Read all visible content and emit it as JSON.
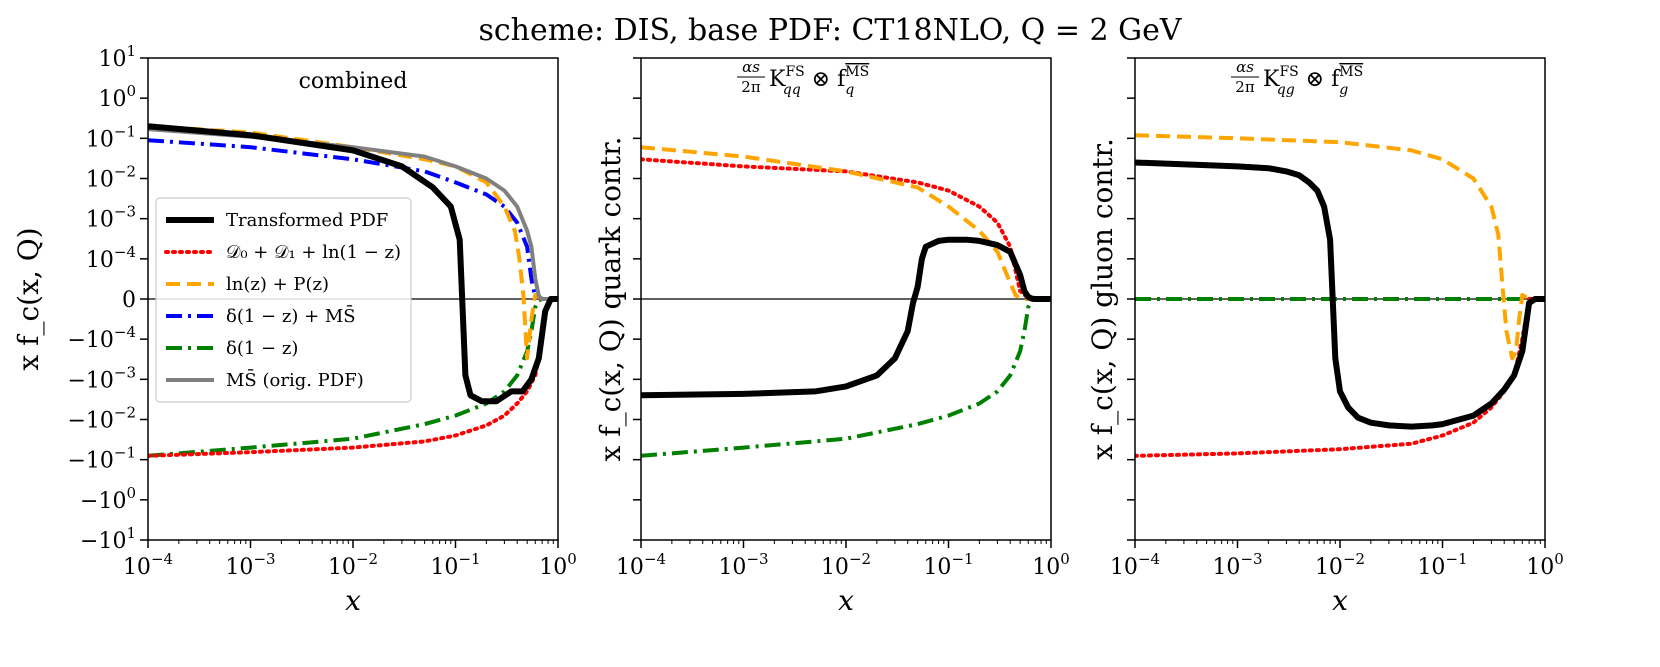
{
  "figure": {
    "suptitle": "scheme: DIS, base PDF: CT18NLO, Q = 2 GeV"
  },
  "chart_data": [
    {
      "type": "line",
      "panel": "combined",
      "title": "combined",
      "xlabel": "x",
      "ylabel": "x f_c(x, Q)",
      "xscale": "log",
      "xlim": [
        0.0001,
        1
      ],
      "yscale": "symlog",
      "ylim": [
        -10,
        10
      ],
      "xticks": [
        "10^-4",
        "10^-3",
        "10^-2",
        "10^-1",
        "10^0"
      ],
      "yticks": [
        "10^1",
        "10^0",
        "10^-1",
        "10^-2",
        "10^-3",
        "10^-4",
        "0",
        "-10^-4",
        "-10^-3",
        "-10^-2",
        "-10^-1",
        "-10^0",
        "-10^1"
      ],
      "legend": {
        "location": "center-left",
        "entries": [
          {
            "series": "Transformed PDF",
            "label": "Transformed PDF"
          },
          {
            "series": "D0+D1+ln(1-z)",
            "label": "𝒟₀ + 𝒟₁ + ln(1 − z)"
          },
          {
            "series": "ln(z)+P(z)",
            "label": "ln(z) + P(z)"
          },
          {
            "series": "delta(1-z)+MSbar",
            "label": "δ(1 − z) + MS̄"
          },
          {
            "series": "delta(1-z)",
            "label": "δ(1 − z)"
          },
          {
            "series": "MSbar (orig. PDF)",
            "label": "MS̄ (orig. PDF)"
          }
        ]
      },
      "series": [
        {
          "name": "Transformed PDF",
          "color": "#000000",
          "style": "solid",
          "x": [
            0.0001,
            0.001,
            0.01,
            0.03,
            0.06,
            0.09,
            0.11,
            0.125,
            0.14,
            0.18,
            0.25,
            0.35,
            0.45,
            0.55,
            0.65,
            0.75,
            0.85,
            1.0
          ],
          "y": [
            0.2,
            0.12,
            0.05,
            0.02,
            0.006,
            0.002,
            0.0003,
            -0.0008,
            -0.0025,
            -0.0035,
            -0.0035,
            -0.002,
            -0.002,
            -0.001,
            -0.0003,
            -3e-05,
            0,
            0
          ]
        },
        {
          "name": "D0+D1+ln(1-z)",
          "color": "#ff0000",
          "style": "dotted",
          "x": [
            0.0001,
            0.001,
            0.01,
            0.05,
            0.1,
            0.2,
            0.3,
            0.4,
            0.5,
            0.6,
            0.7,
            0.8,
            1.0
          ],
          "y": [
            -0.08,
            -0.065,
            -0.05,
            -0.035,
            -0.025,
            -0.014,
            -0.008,
            -0.004,
            -0.002,
            -0.0008,
            -0.0001,
            0,
            0
          ]
        },
        {
          "name": "ln(z)+P(z)",
          "color": "#ffa500",
          "style": "dashed",
          "x": [
            0.0001,
            0.001,
            0.01,
            0.05,
            0.1,
            0.2,
            0.3,
            0.38,
            0.42,
            0.46,
            0.5,
            0.55,
            0.6,
            0.7,
            1.0
          ],
          "y": [
            0.2,
            0.14,
            0.06,
            0.03,
            0.02,
            0.008,
            0.002,
            0.0005,
            0.0001,
            1e-05,
            -0.0003,
            -5e-05,
            1e-05,
            0,
            0
          ]
        },
        {
          "name": "delta(1-z)+MSbar",
          "color": "#0000ff",
          "style": "dashdot",
          "x": [
            0.0001,
            0.001,
            0.01,
            0.05,
            0.1,
            0.2,
            0.3,
            0.4,
            0.5,
            0.55,
            0.6,
            0.7,
            1.0
          ],
          "y": [
            0.09,
            0.06,
            0.03,
            0.015,
            0.008,
            0.004,
            0.002,
            0.0008,
            0.0002,
            5e-05,
            5e-06,
            0,
            0
          ]
        },
        {
          "name": "delta(1-z)",
          "color": "#008000",
          "style": "dashdot",
          "x": [
            0.0001,
            0.001,
            0.01,
            0.05,
            0.1,
            0.2,
            0.3,
            0.4,
            0.5,
            0.55,
            0.6,
            0.65,
            0.7,
            1.0
          ],
          "y": [
            -0.08,
            -0.05,
            -0.03,
            -0.013,
            -0.008,
            -0.004,
            -0.002,
            -0.0008,
            -0.0002,
            -8e-05,
            -2e-05,
            -3e-06,
            0,
            0
          ]
        },
        {
          "name": "MSbar (orig. PDF)",
          "color": "#808080",
          "style": "solid",
          "x": [
            0.0001,
            0.001,
            0.01,
            0.05,
            0.1,
            0.2,
            0.3,
            0.4,
            0.5,
            0.55,
            0.6,
            0.65,
            0.7,
            1.0
          ],
          "y": [
            0.17,
            0.11,
            0.06,
            0.035,
            0.02,
            0.01,
            0.005,
            0.002,
            0.0005,
            0.0002,
            5e-05,
            8e-06,
            0,
            0
          ]
        }
      ]
    },
    {
      "type": "line",
      "panel": "quark",
      "title": "(αs/2π) K_qq^FS ⊗ f_q^MS",
      "title_parts": [
        "αs",
        "2π",
        "K",
        "FS",
        "qq",
        " ⊗ f",
        "MS",
        "q"
      ],
      "xlabel": "x",
      "ylabel": "x f_c(x, Q) quark contr.",
      "xscale": "log",
      "xlim": [
        0.0001,
        1
      ],
      "yscale": "symlog",
      "ylim": [
        -10,
        10
      ],
      "xticks": [
        "10^-4",
        "10^-3",
        "10^-2",
        "10^-1",
        "10^0"
      ],
      "series": [
        {
          "name": "Transformed PDF",
          "color": "#000000",
          "style": "solid",
          "x": [
            0.0001,
            0.001,
            0.005,
            0.01,
            0.02,
            0.03,
            0.04,
            0.045,
            0.05,
            0.055,
            0.06,
            0.08,
            0.1,
            0.15,
            0.2,
            0.3,
            0.4,
            0.5,
            0.55,
            0.6,
            0.65,
            0.7,
            0.8,
            1.0
          ],
          "y": [
            -0.0025,
            -0.0023,
            -0.002,
            -0.0015,
            -0.0008,
            -0.0003,
            -8e-05,
            -1e-05,
            3e-05,
            0.0001,
            0.0002,
            0.00028,
            0.0003,
            0.0003,
            0.00028,
            0.00022,
            0.00015,
            6e-05,
            2e-05,
            5e-06,
            1e-06,
            0,
            0,
            0
          ]
        },
        {
          "name": "D0+D1+ln(1-z)",
          "color": "#ff0000",
          "style": "dotted",
          "x": [
            0.0001,
            0.001,
            0.01,
            0.05,
            0.1,
            0.2,
            0.3,
            0.4,
            0.5,
            0.6,
            0.7,
            1.0
          ],
          "y": [
            0.03,
            0.02,
            0.015,
            0.008,
            0.005,
            0.002,
            0.0008,
            0.0002,
            2e-05,
            2e-06,
            0,
            0
          ]
        },
        {
          "name": "ln(z)+P(z)",
          "color": "#ffa500",
          "style": "dashed",
          "x": [
            0.0001,
            0.001,
            0.01,
            0.05,
            0.1,
            0.2,
            0.3,
            0.4,
            0.45,
            0.5,
            0.55,
            0.6,
            0.7,
            1.0
          ],
          "y": [
            0.06,
            0.035,
            0.015,
            0.006,
            0.002,
            0.0005,
            0.00015,
            4e-05,
            1e-05,
            1e-06,
            0,
            0,
            0,
            0
          ]
        },
        {
          "name": "delta(1-z)",
          "color": "#008000",
          "style": "dashdot",
          "x": [
            0.0001,
            0.001,
            0.01,
            0.05,
            0.1,
            0.2,
            0.3,
            0.4,
            0.5,
            0.55,
            0.6,
            0.65,
            0.7,
            1.0
          ],
          "y": [
            -0.08,
            -0.05,
            -0.03,
            -0.013,
            -0.008,
            -0.004,
            -0.002,
            -0.0008,
            -0.0002,
            -8e-05,
            -2e-05,
            -3e-06,
            0,
            0
          ]
        }
      ]
    },
    {
      "type": "line",
      "panel": "gluon",
      "title": "(αs/2π) K_qg^FS ⊗ f_g^MS",
      "title_parts": [
        "αs",
        "2π",
        "K",
        "FS",
        "qg",
        " ⊗ f",
        "MS",
        "g"
      ],
      "xlabel": "x",
      "ylabel": "x f_c(x, Q) gluon contr.",
      "xscale": "log",
      "xlim": [
        0.0001,
        1
      ],
      "yscale": "symlog",
      "ylim": [
        -10,
        10
      ],
      "xticks": [
        "10^-4",
        "10^-3",
        "10^-2",
        "10^-1",
        "10^0"
      ],
      "series": [
        {
          "name": "Transformed PDF",
          "color": "#000000",
          "style": "solid",
          "x": [
            0.0001,
            0.001,
            0.002,
            0.003,
            0.004,
            0.005,
            0.006,
            0.007,
            0.008,
            0.009,
            0.01,
            0.012,
            0.015,
            0.02,
            0.03,
            0.05,
            0.08,
            0.1,
            0.2,
            0.3,
            0.4,
            0.5,
            0.6,
            0.7,
            0.8,
            1.0
          ],
          "y": [
            0.025,
            0.02,
            0.018,
            0.015,
            0.012,
            0.008,
            0.005,
            0.002,
            0.0003,
            -0.0003,
            -0.002,
            -0.005,
            -0.009,
            -0.012,
            -0.014,
            -0.015,
            -0.014,
            -0.013,
            -0.008,
            -0.004,
            -0.0018,
            -0.0008,
            -0.0002,
            -1e-05,
            0,
            0
          ]
        },
        {
          "name": "D0+D1+ln(1-z)",
          "color": "#ff0000",
          "style": "dotted",
          "x": [
            0.0001,
            0.001,
            0.01,
            0.05,
            0.1,
            0.2,
            0.3,
            0.4,
            0.5,
            0.6,
            0.7,
            1.0
          ],
          "y": [
            -0.08,
            -0.07,
            -0.055,
            -0.04,
            -0.025,
            -0.012,
            -0.005,
            -0.002,
            -0.0008,
            -0.0001,
            0,
            0
          ]
        },
        {
          "name": "ln(z)+P(z)",
          "color": "#ffa500",
          "style": "dashed",
          "x": [
            0.0001,
            0.001,
            0.01,
            0.05,
            0.1,
            0.2,
            0.3,
            0.35,
            0.38,
            0.42,
            0.48,
            0.52,
            0.56,
            0.6,
            0.7,
            1.0
          ],
          "y": [
            0.12,
            0.1,
            0.08,
            0.05,
            0.03,
            0.01,
            0.002,
            0.0004,
            5e-05,
            -8e-05,
            -0.0003,
            -0.0002,
            -5e-05,
            1e-05,
            0,
            0
          ]
        },
        {
          "name": "delta(1-z)",
          "color": "#008000",
          "style": "dashdot",
          "x": [
            0.0001,
            1.0
          ],
          "y": [
            0,
            0
          ]
        }
      ]
    }
  ]
}
